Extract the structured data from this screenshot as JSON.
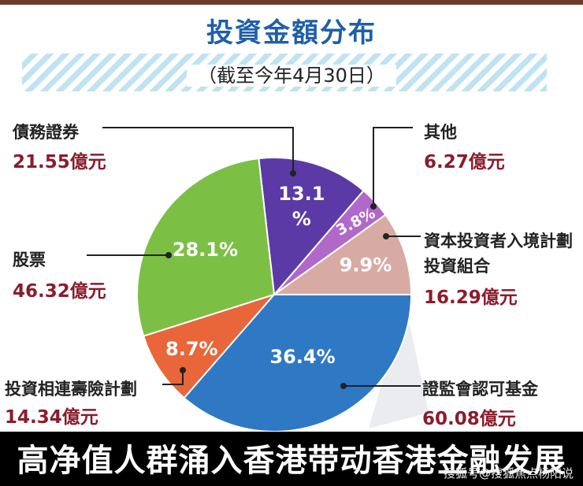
{
  "chart_data": {
    "type": "pie",
    "title": "投資金額分布",
    "subtitle": "（截至今年4月30日）",
    "slices": [
      {
        "category": "資本投資者入境計劃投資組合",
        "category_lines": [
          "資本投資者入境計劃",
          "投資組合"
        ],
        "value_label": "16.29億元",
        "value": 16.29,
        "percent_label": "9.9%",
        "percent": 9.9,
        "color": "#d8aaa4"
      },
      {
        "category": "證監會認可基金",
        "category_lines": [
          "證監會認可基金"
        ],
        "value_label": "60.08億元",
        "value": 60.08,
        "percent_label": "36.4%",
        "percent": 36.4,
        "color": "#2f78c4"
      },
      {
        "category": "投資相連壽險計劃",
        "category_lines": [
          "投資相連壽險計劃"
        ],
        "value_label": "14.34億元",
        "value": 14.34,
        "percent_label": "8.7%",
        "percent": 8.7,
        "color": "#e8663a"
      },
      {
        "category": "股票",
        "category_lines": [
          "股票"
        ],
        "value_label": "46.32億元",
        "value": 46.32,
        "percent_label": "28.1%",
        "percent": 28.1,
        "color": "#7cbf45"
      },
      {
        "category": "債務證券",
        "category_lines": [
          "債務證券"
        ],
        "value_label": "21.55億元",
        "value": 21.55,
        "percent_label": "13.1%",
        "percent_lines": [
          "13.1",
          "%"
        ],
        "percent": 13.1,
        "color": "#5b3aa6"
      },
      {
        "category": "其他",
        "category_lines": [
          "其他"
        ],
        "value_label": "6.27億元",
        "value": 6.27,
        "percent_label": "3.8%",
        "percent": 3.8,
        "color": "#b068c9"
      }
    ]
  },
  "caption": "高净值人群涌入香港带动香港金融发展",
  "watermark": "搜狐号@搜狐焦点杨阳说"
}
